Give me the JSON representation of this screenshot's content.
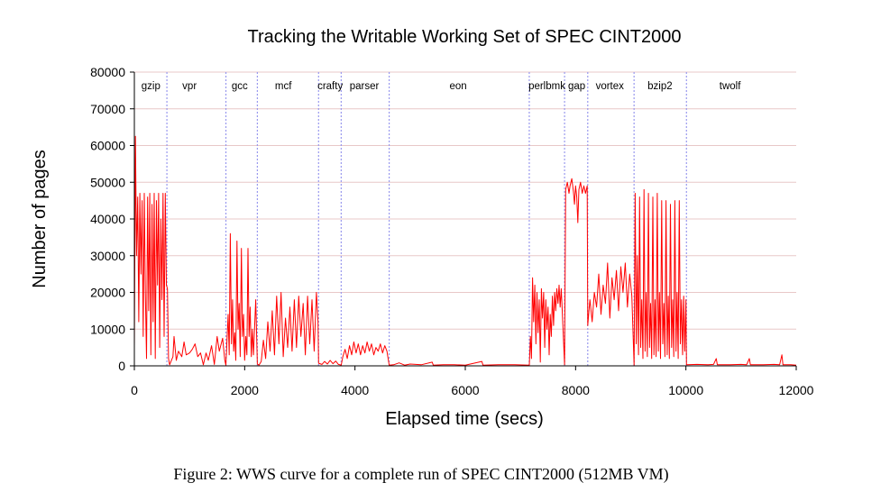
{
  "caption": "Figure 2: WWS curve for a complete run of SPEC CINT2000 (512MB VM)",
  "chart_data": {
    "type": "line",
    "title": "Tracking the Writable Working Set of SPEC CINT2000",
    "xlabel": "Elapsed time (secs)",
    "ylabel": "Number of pages",
    "xlim": [
      0,
      12000
    ],
    "ylim": [
      0,
      80000
    ],
    "x_ticks": [
      0,
      2000,
      4000,
      6000,
      8000,
      10000,
      12000
    ],
    "y_ticks": [
      0,
      10000,
      20000,
      30000,
      40000,
      50000,
      60000,
      70000,
      80000
    ],
    "grid": "horizontal",
    "colors": {
      "line": "#ff0000",
      "grid": "#e8c8c8",
      "boundary": "#9999ee",
      "axis": "#000000"
    },
    "boundaries": [
      590,
      1660,
      2230,
      3340,
      3750,
      4620,
      7160,
      7800,
      8220,
      9060,
      10010
    ],
    "benchmarks": [
      {
        "name": "gzip",
        "x": 300
      },
      {
        "name": "vpr",
        "x": 1000
      },
      {
        "name": "gcc",
        "x": 1910
      },
      {
        "name": "mcf",
        "x": 2700
      },
      {
        "name": "crafty",
        "x": 3550
      },
      {
        "name": "parser",
        "x": 4170
      },
      {
        "name": "eon",
        "x": 5870
      },
      {
        "name": "perlbmk",
        "x": 7480
      },
      {
        "name": "gap",
        "x": 8020
      },
      {
        "name": "vortex",
        "x": 8620
      },
      {
        "name": "bzip2",
        "x": 9530
      },
      {
        "name": "twolf",
        "x": 10800
      }
    ],
    "series": [
      {
        "points": [
          [
            0,
            5000
          ],
          [
            20,
            62500
          ],
          [
            40,
            30000
          ],
          [
            60,
            46000
          ],
          [
            80,
            12000
          ],
          [
            100,
            47000
          ],
          [
            120,
            25000
          ],
          [
            140,
            45000
          ],
          [
            160,
            8000
          ],
          [
            180,
            47000
          ],
          [
            200,
            20000
          ],
          [
            220,
            2000
          ],
          [
            240,
            46000
          ],
          [
            260,
            15000
          ],
          [
            280,
            47000
          ],
          [
            300,
            3000
          ],
          [
            320,
            44000
          ],
          [
            340,
            12000
          ],
          [
            360,
            47000
          ],
          [
            380,
            2000
          ],
          [
            400,
            45000
          ],
          [
            420,
            22000
          ],
          [
            440,
            47000
          ],
          [
            460,
            5000
          ],
          [
            480,
            40000
          ],
          [
            500,
            18000
          ],
          [
            520,
            47000
          ],
          [
            540,
            8000
          ],
          [
            560,
            47000
          ],
          [
            580,
            22000
          ],
          [
            600,
            21000
          ],
          [
            620,
            2000
          ],
          [
            640,
            300
          ],
          [
            700,
            2500
          ],
          [
            720,
            8000
          ],
          [
            760,
            1500
          ],
          [
            800,
            4000
          ],
          [
            860,
            2500
          ],
          [
            900,
            6500
          ],
          [
            940,
            3000
          ],
          [
            1000,
            3500
          ],
          [
            1050,
            4500
          ],
          [
            1100,
            6000
          ],
          [
            1150,
            2500
          ],
          [
            1200,
            3500
          ],
          [
            1250,
            300
          ],
          [
            1300,
            3500
          ],
          [
            1340,
            1500
          ],
          [
            1400,
            5500
          ],
          [
            1450,
            400
          ],
          [
            1500,
            8000
          ],
          [
            1540,
            4000
          ],
          [
            1600,
            7500
          ],
          [
            1640,
            1500
          ],
          [
            1660,
            200
          ],
          [
            1700,
            14000
          ],
          [
            1720,
            3000
          ],
          [
            1740,
            36000
          ],
          [
            1760,
            6000
          ],
          [
            1780,
            18000
          ],
          [
            1800,
            4000
          ],
          [
            1820,
            9000
          ],
          [
            1840,
            1500
          ],
          [
            1860,
            34000
          ],
          [
            1880,
            10000
          ],
          [
            1900,
            17000
          ],
          [
            1920,
            2500
          ],
          [
            1940,
            32000
          ],
          [
            1960,
            8000
          ],
          [
            1980,
            14000
          ],
          [
            2000,
            1500
          ],
          [
            2020,
            8000
          ],
          [
            2040,
            3000
          ],
          [
            2060,
            32000
          ],
          [
            2080,
            8000
          ],
          [
            2100,
            16000
          ],
          [
            2120,
            2500
          ],
          [
            2140,
            10000
          ],
          [
            2160,
            3000
          ],
          [
            2200,
            18000
          ],
          [
            2230,
            500
          ],
          [
            2260,
            200
          ],
          [
            2300,
            1200
          ],
          [
            2340,
            7000
          ],
          [
            2380,
            2000
          ],
          [
            2420,
            12000
          ],
          [
            2460,
            4000
          ],
          [
            2500,
            15000
          ],
          [
            2540,
            3000
          ],
          [
            2580,
            19000
          ],
          [
            2620,
            6000
          ],
          [
            2660,
            20000
          ],
          [
            2700,
            2500
          ],
          [
            2740,
            13000
          ],
          [
            2780,
            5000
          ],
          [
            2820,
            16000
          ],
          [
            2860,
            4000
          ],
          [
            2900,
            18000
          ],
          [
            2940,
            5000
          ],
          [
            2980,
            19000
          ],
          [
            3020,
            8000
          ],
          [
            3060,
            17000
          ],
          [
            3100,
            3000
          ],
          [
            3140,
            19000
          ],
          [
            3180,
            6000
          ],
          [
            3220,
            18000
          ],
          [
            3260,
            4000
          ],
          [
            3300,
            20000
          ],
          [
            3330,
            12000
          ],
          [
            3340,
            700
          ],
          [
            3400,
            400
          ],
          [
            3450,
            1200
          ],
          [
            3500,
            500
          ],
          [
            3550,
            1500
          ],
          [
            3600,
            600
          ],
          [
            3650,
            1300
          ],
          [
            3700,
            400
          ],
          [
            3750,
            200
          ],
          [
            3780,
            2500
          ],
          [
            3820,
            4500
          ],
          [
            3860,
            2000
          ],
          [
            3900,
            5500
          ],
          [
            3940,
            3000
          ],
          [
            3980,
            6500
          ],
          [
            4020,
            3500
          ],
          [
            4060,
            6000
          ],
          [
            4100,
            3000
          ],
          [
            4140,
            5500
          ],
          [
            4180,
            3500
          ],
          [
            4220,
            6500
          ],
          [
            4260,
            4000
          ],
          [
            4300,
            6000
          ],
          [
            4340,
            3000
          ],
          [
            4380,
            5000
          ],
          [
            4420,
            4000
          ],
          [
            4460,
            6000
          ],
          [
            4500,
            3500
          ],
          [
            4540,
            5500
          ],
          [
            4580,
            4000
          ],
          [
            4620,
            200
          ],
          [
            4700,
            300
          ],
          [
            4800,
            800
          ],
          [
            4900,
            200
          ],
          [
            5000,
            500
          ],
          [
            5200,
            300
          ],
          [
            5400,
            1000
          ],
          [
            5420,
            200
          ],
          [
            5600,
            300
          ],
          [
            5800,
            300
          ],
          [
            6000,
            200
          ],
          [
            6300,
            1200
          ],
          [
            6320,
            200
          ],
          [
            6600,
            300
          ],
          [
            6900,
            300
          ],
          [
            7160,
            200
          ],
          [
            7180,
            8000
          ],
          [
            7200,
            2000
          ],
          [
            7220,
            24000
          ],
          [
            7240,
            12000
          ],
          [
            7260,
            22000
          ],
          [
            7280,
            6000
          ],
          [
            7300,
            20000
          ],
          [
            7320,
            9000
          ],
          [
            7340,
            18000
          ],
          [
            7360,
            1000
          ],
          [
            7380,
            21000
          ],
          [
            7400,
            13000
          ],
          [
            7420,
            20000
          ],
          [
            7440,
            5000
          ],
          [
            7460,
            18000
          ],
          [
            7480,
            10000
          ],
          [
            7500,
            16000
          ],
          [
            7520,
            3000
          ],
          [
            7540,
            14000
          ],
          [
            7560,
            8000
          ],
          [
            7580,
            19000
          ],
          [
            7600,
            11000
          ],
          [
            7620,
            20000
          ],
          [
            7640,
            15000
          ],
          [
            7660,
            21000
          ],
          [
            7680,
            17000
          ],
          [
            7700,
            22000
          ],
          [
            7720,
            16000
          ],
          [
            7740,
            21000
          ],
          [
            7760,
            14000
          ],
          [
            7800,
            300
          ],
          [
            7820,
            48000
          ],
          [
            7850,
            50000
          ],
          [
            7880,
            47000
          ],
          [
            7900,
            49000
          ],
          [
            7930,
            51000
          ],
          [
            7960,
            47500
          ],
          [
            7980,
            44000
          ],
          [
            8000,
            49000
          ],
          [
            8020,
            46000
          ],
          [
            8040,
            39000
          ],
          [
            8060,
            48000
          ],
          [
            8090,
            50000
          ],
          [
            8120,
            47000
          ],
          [
            8150,
            49000
          ],
          [
            8180,
            47000
          ],
          [
            8210,
            49000
          ],
          [
            8220,
            11000
          ],
          [
            8260,
            18000
          ],
          [
            8300,
            12000
          ],
          [
            8340,
            20000
          ],
          [
            8380,
            16000
          ],
          [
            8420,
            25000
          ],
          [
            8460,
            14000
          ],
          [
            8500,
            22000
          ],
          [
            8540,
            17000
          ],
          [
            8580,
            28000
          ],
          [
            8620,
            13000
          ],
          [
            8660,
            24000
          ],
          [
            8700,
            18000
          ],
          [
            8740,
            26000
          ],
          [
            8780,
            15000
          ],
          [
            8820,
            27000
          ],
          [
            8860,
            20000
          ],
          [
            8900,
            28000
          ],
          [
            8940,
            16000
          ],
          [
            8980,
            25000
          ],
          [
            9020,
            19000
          ],
          [
            9060,
            200
          ],
          [
            9080,
            47000
          ],
          [
            9100,
            6000
          ],
          [
            9120,
            30000
          ],
          [
            9140,
            3000
          ],
          [
            9160,
            46000
          ],
          [
            9180,
            5000
          ],
          [
            9200,
            18000
          ],
          [
            9220,
            2000
          ],
          [
            9240,
            48000
          ],
          [
            9260,
            4000
          ],
          [
            9280,
            20000
          ],
          [
            9300,
            2500
          ],
          [
            9320,
            47000
          ],
          [
            9340,
            5000
          ],
          [
            9360,
            17000
          ],
          [
            9380,
            2000
          ],
          [
            9400,
            46000
          ],
          [
            9420,
            3000
          ],
          [
            9440,
            18000
          ],
          [
            9460,
            2500
          ],
          [
            9480,
            47000
          ],
          [
            9500,
            4000
          ],
          [
            9520,
            20000
          ],
          [
            9540,
            2000
          ],
          [
            9560,
            45000
          ],
          [
            9580,
            6000
          ],
          [
            9600,
            17000
          ],
          [
            9620,
            2500
          ],
          [
            9640,
            45000
          ],
          [
            9660,
            3000
          ],
          [
            9680,
            19000
          ],
          [
            9700,
            2000
          ],
          [
            9720,
            44000
          ],
          [
            9740,
            5000
          ],
          [
            9760,
            18000
          ],
          [
            9780,
            2500
          ],
          [
            9800,
            45000
          ],
          [
            9820,
            4000
          ],
          [
            9840,
            20000
          ],
          [
            9860,
            2000
          ],
          [
            9880,
            45000
          ],
          [
            9900,
            6000
          ],
          [
            9920,
            18000
          ],
          [
            9940,
            3000
          ],
          [
            9960,
            19000
          ],
          [
            9980,
            4000
          ],
          [
            10000,
            18000
          ],
          [
            10010,
            300
          ],
          [
            10200,
            400
          ],
          [
            10400,
            300
          ],
          [
            10500,
            400
          ],
          [
            10550,
            2000
          ],
          [
            10570,
            300
          ],
          [
            10800,
            300
          ],
          [
            11000,
            400
          ],
          [
            11100,
            300
          ],
          [
            11150,
            2000
          ],
          [
            11170,
            300
          ],
          [
            11400,
            300
          ],
          [
            11600,
            400
          ],
          [
            11700,
            300
          ],
          [
            11740,
            3000
          ],
          [
            11760,
            300
          ],
          [
            11900,
            300
          ],
          [
            12000,
            200
          ]
        ]
      }
    ]
  }
}
